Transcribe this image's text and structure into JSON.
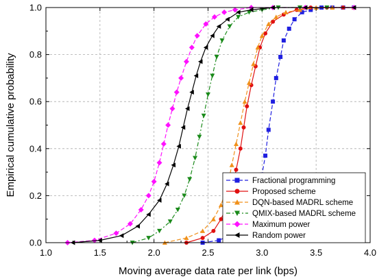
{
  "chart_data": {
    "type": "line",
    "title": "",
    "xlabel": "Moving average data rate per link (bps)",
    "ylabel": "Empirical cumulative probability",
    "xlim": [
      1.0,
      4.0
    ],
    "ylim": [
      0.0,
      1.0
    ],
    "x_ticks": [
      "1.0",
      "1.5",
      "2.0",
      "2.5",
      "3.0",
      "3.5",
      "4.0"
    ],
    "y_ticks": [
      "0.0",
      "0.2",
      "0.4",
      "0.6",
      "0.8",
      "1.0"
    ],
    "x_tick_values": [
      1.0,
      1.5,
      2.0,
      2.5,
      3.0,
      3.5,
      4.0
    ],
    "y_tick_values": [
      0.0,
      0.2,
      0.4,
      0.6,
      0.8,
      1.0
    ],
    "grid": true,
    "legend_position": "bottom-right",
    "series": [
      {
        "name": "Fractional programming",
        "color": "#1f1fe0",
        "marker": "square",
        "dash": "6,3",
        "x": [
          2.45,
          2.6,
          2.75,
          2.85,
          2.9,
          2.95,
          3.0,
          3.03,
          3.06,
          3.1,
          3.13,
          3.17,
          3.2,
          3.25,
          3.3,
          3.37,
          3.45,
          3.55,
          3.65,
          3.75,
          3.85
        ],
        "y": [
          0.0,
          0.01,
          0.04,
          0.08,
          0.13,
          0.2,
          0.29,
          0.37,
          0.48,
          0.6,
          0.7,
          0.79,
          0.86,
          0.91,
          0.95,
          0.98,
          0.99,
          1.0,
          1.0,
          1.0,
          1.0
        ]
      },
      {
        "name": "Proposed scheme",
        "color": "#e01010",
        "marker": "circle",
        "dash": "",
        "x": [
          2.3,
          2.45,
          2.55,
          2.62,
          2.68,
          2.72,
          2.76,
          2.8,
          2.83,
          2.86,
          2.9,
          2.94,
          2.98,
          3.03,
          3.1,
          3.2,
          3.32,
          3.45,
          3.6,
          3.75,
          3.85
        ],
        "y": [
          0.0,
          0.02,
          0.05,
          0.1,
          0.16,
          0.23,
          0.31,
          0.4,
          0.49,
          0.58,
          0.67,
          0.75,
          0.83,
          0.89,
          0.94,
          0.97,
          0.99,
          1.0,
          1.0,
          1.0,
          1.0
        ]
      },
      {
        "name": "DQN-based MADRL scheme",
        "color": "#f0901a",
        "marker": "triangle-up",
        "dash": "6,3",
        "x": [
          2.1,
          2.3,
          2.45,
          2.55,
          2.62,
          2.68,
          2.72,
          2.76,
          2.8,
          2.84,
          2.88,
          2.92,
          2.96,
          3.0,
          3.06,
          3.13,
          3.22,
          3.35,
          3.5,
          3.65,
          3.85
        ],
        "y": [
          0.0,
          0.02,
          0.05,
          0.1,
          0.16,
          0.24,
          0.33,
          0.42,
          0.51,
          0.6,
          0.68,
          0.76,
          0.83,
          0.88,
          0.93,
          0.96,
          0.98,
          0.99,
          1.0,
          1.0,
          1.0
        ]
      },
      {
        "name": "QMIX-based MADRL scheme",
        "color": "#1a8a1a",
        "marker": "triangle-down",
        "dash": "6,3,2,3",
        "x": [
          1.8,
          1.95,
          2.05,
          2.15,
          2.22,
          2.28,
          2.33,
          2.38,
          2.42,
          2.46,
          2.5,
          2.54,
          2.58,
          2.63,
          2.7,
          2.78,
          2.88,
          3.0,
          3.15,
          3.35,
          3.6
        ],
        "y": [
          0.0,
          0.02,
          0.05,
          0.09,
          0.14,
          0.2,
          0.27,
          0.36,
          0.45,
          0.54,
          0.63,
          0.71,
          0.79,
          0.86,
          0.92,
          0.96,
          0.98,
          0.99,
          1.0,
          1.0,
          1.0
        ]
      },
      {
        "name": "Maximum power",
        "color": "#ff10ff",
        "marker": "diamond",
        "dash": "6,3",
        "x": [
          1.2,
          1.45,
          1.65,
          1.78,
          1.88,
          1.95,
          2.0,
          2.05,
          2.09,
          2.13,
          2.17,
          2.21,
          2.25,
          2.3,
          2.35,
          2.4,
          2.48,
          2.56,
          2.65,
          2.75,
          2.9,
          3.1,
          3.4,
          3.85
        ],
        "y": [
          0.0,
          0.01,
          0.04,
          0.08,
          0.14,
          0.2,
          0.26,
          0.34,
          0.42,
          0.5,
          0.57,
          0.64,
          0.7,
          0.77,
          0.83,
          0.88,
          0.93,
          0.96,
          0.98,
          0.99,
          1.0,
          1.0,
          1.0,
          1.0
        ]
      },
      {
        "name": "Random power",
        "color": "#000000",
        "marker": "triangle-left",
        "dash": "",
        "x": [
          1.25,
          1.5,
          1.7,
          1.85,
          1.95,
          2.05,
          2.12,
          2.18,
          2.23,
          2.27,
          2.31,
          2.35,
          2.39,
          2.43,
          2.48,
          2.54,
          2.6,
          2.68,
          2.78,
          2.9,
          3.1,
          3.4,
          3.85
        ],
        "y": [
          0.0,
          0.01,
          0.03,
          0.07,
          0.12,
          0.18,
          0.25,
          0.33,
          0.41,
          0.49,
          0.57,
          0.64,
          0.71,
          0.77,
          0.83,
          0.88,
          0.92,
          0.95,
          0.98,
          0.99,
          1.0,
          1.0,
          1.0
        ]
      }
    ]
  }
}
